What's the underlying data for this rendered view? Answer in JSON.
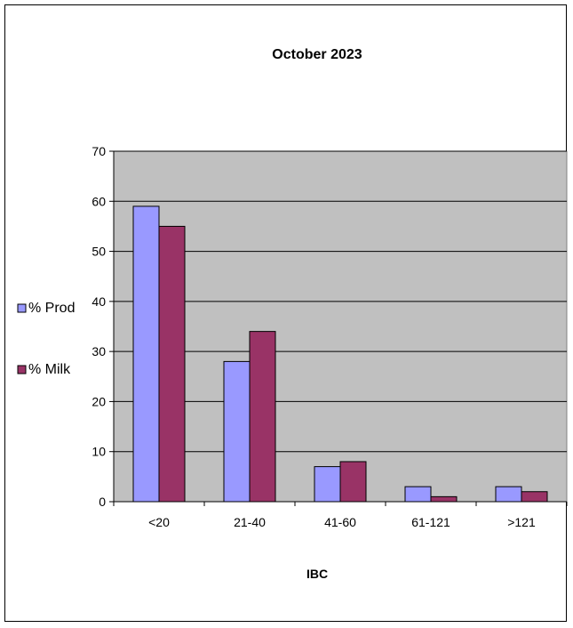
{
  "chart_data": {
    "type": "bar",
    "title": "October 2023",
    "xlabel": "IBC",
    "ylabel": "",
    "categories": [
      "<20",
      "21-40",
      "41-60",
      "61-121",
      ">121"
    ],
    "series": [
      {
        "name": "% Prod",
        "values": [
          59,
          28,
          7,
          3,
          3
        ],
        "color": "#9999ff"
      },
      {
        "name": "% Milk",
        "values": [
          55,
          34,
          8,
          1,
          2
        ],
        "color": "#993366"
      }
    ],
    "ylim": [
      0,
      70
    ],
    "yticks": [
      0,
      10,
      20,
      30,
      40,
      50,
      60,
      70
    ],
    "grid": true,
    "plot_background": "#c0c0c0",
    "legend_position": "left"
  }
}
